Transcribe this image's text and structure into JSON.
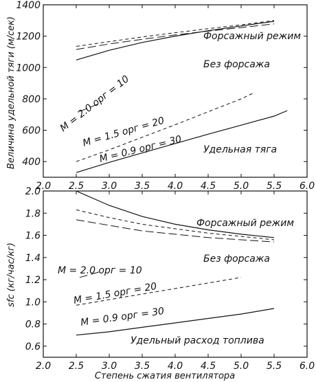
{
  "chart_data": [
    {
      "type": "line",
      "xlabel": "",
      "ylabel": "Величина удельной тяги (м/сек)",
      "xlim": [
        2.0,
        6.0
      ],
      "ylim": [
        300,
        1400
      ],
      "xticks": [
        "2.0",
        "2.5",
        "3.0",
        "3.5",
        "4.0",
        "4.5",
        "5.0",
        "5.5",
        "6.0"
      ],
      "yticks": [
        "400",
        "600",
        "800",
        "1000",
        "1200",
        "1400"
      ],
      "annotations": [
        "Форсажный режим",
        "Без форсажа",
        "Удельная тяга"
      ],
      "series": [
        {
          "label": "M = 0.9 орг = 30",
          "style": "solid",
          "group": "afterburner",
          "points": [
            [
              2.5,
              1048
            ],
            [
              3.0,
              1110
            ],
            [
              3.5,
              1160
            ],
            [
              4.0,
              1200
            ],
            [
              4.5,
              1235
            ],
            [
              5.0,
              1265
            ],
            [
              5.5,
              1295
            ]
          ]
        },
        {
          "label": "M = 1.5 орг = 20",
          "style": "short-dash",
          "group": "afterburner",
          "points": [
            [
              2.5,
              1135
            ],
            [
              3.0,
              1165
            ],
            [
              3.5,
              1195
            ],
            [
              4.0,
              1222
            ],
            [
              4.5,
              1248
            ],
            [
              5.0,
              1272
            ],
            [
              5.5,
              1300
            ]
          ]
        },
        {
          "label": "M = 2.0 орг = 10",
          "style": "long-dash",
          "group": "afterburner",
          "points": [
            [
              2.5,
              1115
            ],
            [
              3.0,
              1150
            ],
            [
              3.5,
              1180
            ],
            [
              4.0,
              1208
            ],
            [
              4.5,
              1232
            ],
            [
              5.0,
              1255
            ],
            [
              5.5,
              1278
            ]
          ]
        },
        {
          "label": "M = 2.0 орг = 10",
          "style": "long-dash",
          "group": "dry",
          "points": [
            [
              2.55,
              720
            ],
            [
              2.85,
              770
            ]
          ]
        },
        {
          "label": "M = 1.5 орг = 20",
          "style": "short-dash",
          "group": "dry",
          "points": [
            [
              2.5,
              400
            ],
            [
              3.0,
              475
            ],
            [
              3.5,
              555
            ],
            [
              4.0,
              635
            ],
            [
              4.5,
              718
            ],
            [
              5.0,
              800
            ],
            [
              5.2,
              840
            ]
          ]
        },
        {
          "label": "M = 0.9 орг = 30",
          "style": "solid",
          "group": "dry",
          "points": [
            [
              2.5,
              330
            ],
            [
              3.0,
              395
            ],
            [
              3.5,
              455
            ],
            [
              4.0,
              515
            ],
            [
              4.5,
              575
            ],
            [
              5.0,
              632
            ],
            [
              5.5,
              690
            ],
            [
              5.7,
              725
            ]
          ]
        }
      ],
      "labels": [
        "M = 2.0 орг = 10",
        "M = 1.5 орг = 20",
        "M = 0.9 орг = 30"
      ]
    },
    {
      "type": "line",
      "xlabel": "Степень сжатия вентилятора",
      "ylabel": "sfc (кг/час/кг)",
      "xlim": [
        2.0,
        6.0
      ],
      "ylim": [
        0.5,
        2.0
      ],
      "xticks": [
        "2.0",
        "2.5",
        "3.0",
        "3.5",
        "4.0",
        "4.5",
        "5.0",
        "5.5",
        "6.0"
      ],
      "yticks": [
        "0.6",
        "0.8",
        "1.0",
        "1.2",
        "1.4",
        "1.6",
        "1.8",
        "2.0"
      ],
      "annotations": [
        "Форсажный режим",
        "Без форсажа",
        "Удельный расход топлива"
      ],
      "series": [
        {
          "label": "M = 0.9 орг = 30",
          "style": "solid",
          "group": "afterburner",
          "points": [
            [
              2.5,
              2.0
            ],
            [
              3.0,
              1.87
            ],
            [
              3.5,
              1.77
            ],
            [
              4.0,
              1.7
            ],
            [
              4.5,
              1.65
            ],
            [
              5.0,
              1.61
            ],
            [
              5.5,
              1.58
            ]
          ]
        },
        {
          "label": "M = 1.5 орг = 20",
          "style": "short-dash",
          "group": "afterburner",
          "points": [
            [
              2.5,
              1.83
            ],
            [
              3.0,
              1.76
            ],
            [
              3.5,
              1.7
            ],
            [
              4.0,
              1.66
            ],
            [
              4.5,
              1.62
            ],
            [
              5.0,
              1.59
            ],
            [
              5.5,
              1.56
            ]
          ]
        },
        {
          "label": "M = 2.0 орг = 10",
          "style": "long-dash",
          "group": "afterburner",
          "points": [
            [
              2.5,
              1.74
            ],
            [
              3.0,
              1.69
            ],
            [
              3.5,
              1.64
            ],
            [
              4.0,
              1.61
            ],
            [
              4.5,
              1.58
            ],
            [
              5.0,
              1.56
            ],
            [
              5.5,
              1.54
            ]
          ]
        },
        {
          "label": "M = 2.0 орг = 10",
          "style": "long-dash",
          "group": "dry",
          "points": [
            [
              2.55,
              1.22
            ],
            [
              2.85,
              1.27
            ]
          ]
        },
        {
          "label": "M = 1.5 орг = 20",
          "style": "short-dash",
          "group": "dry",
          "points": [
            [
              2.5,
              0.97
            ],
            [
              3.0,
              1.02
            ],
            [
              3.5,
              1.07
            ],
            [
              4.0,
              1.12
            ],
            [
              4.5,
              1.17
            ],
            [
              5.0,
              1.22
            ]
          ]
        },
        {
          "label": "M = 0.9 орг = 30",
          "style": "solid",
          "group": "dry",
          "points": [
            [
              2.5,
              0.7
            ],
            [
              3.0,
              0.73
            ],
            [
              3.5,
              0.77
            ],
            [
              4.0,
              0.81
            ],
            [
              4.5,
              0.85
            ],
            [
              5.0,
              0.89
            ],
            [
              5.5,
              0.94
            ]
          ]
        }
      ],
      "labels": [
        "M = 2.0 орг = 10",
        "M = 1.5 орг = 20",
        "M = 0.9 орг = 30"
      ]
    }
  ]
}
